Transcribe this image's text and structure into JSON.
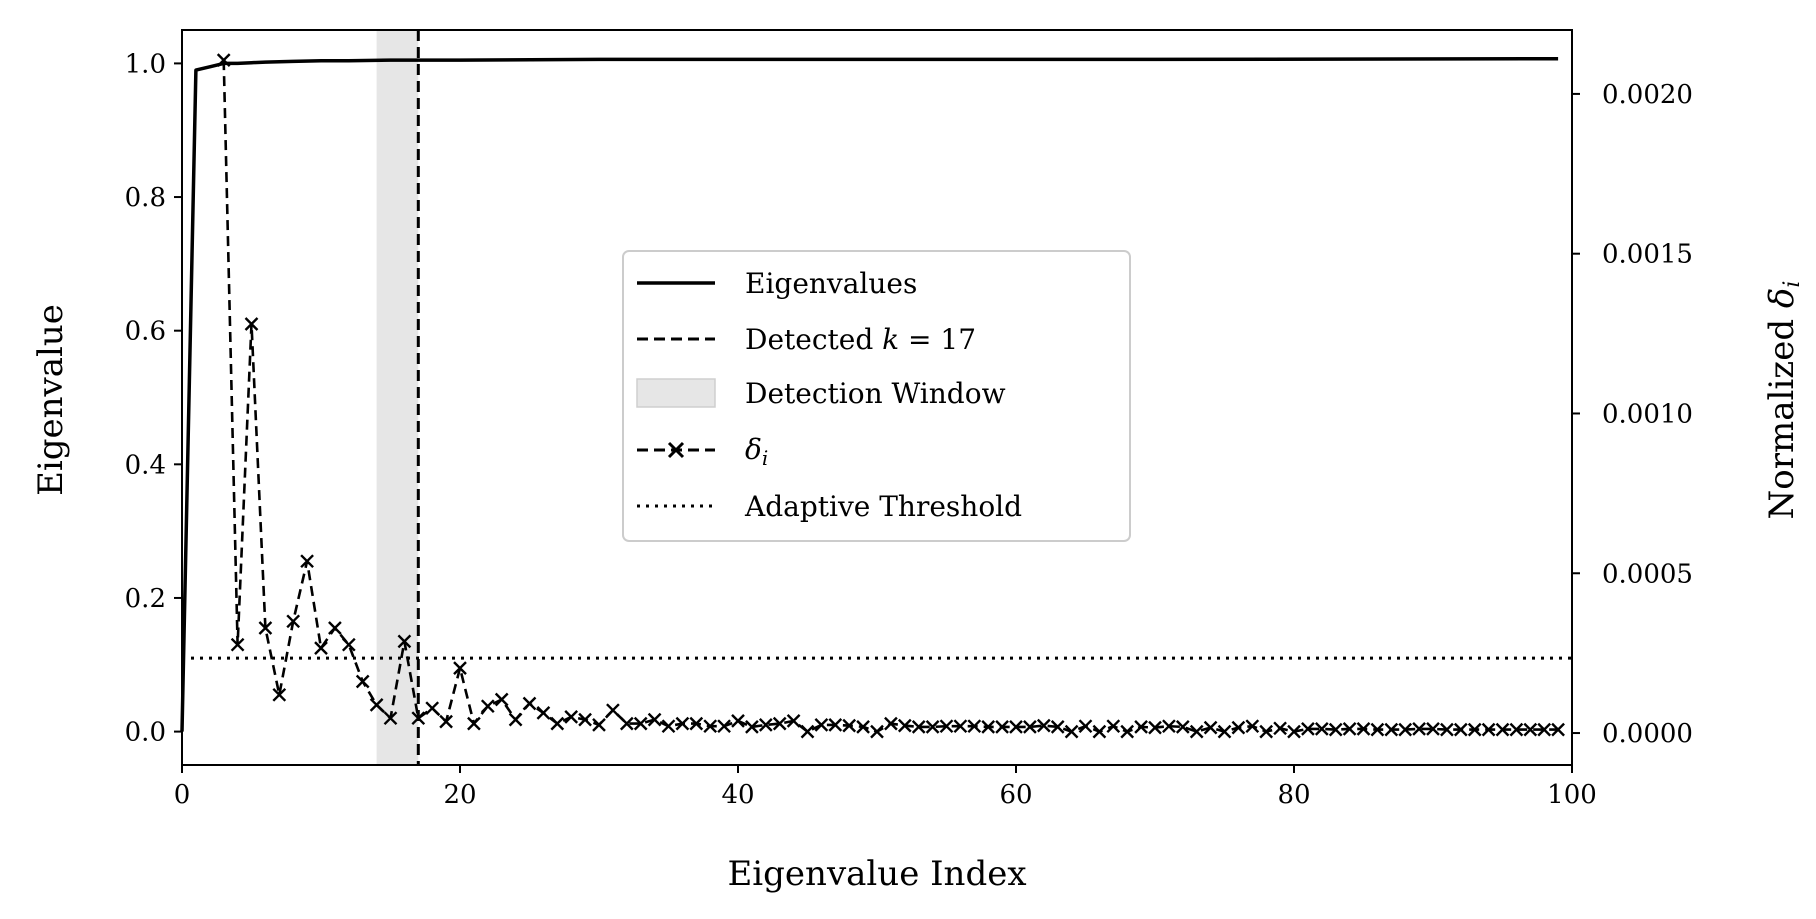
{
  "chart_data": {
    "type": "line",
    "xlabel": "Eigenvalue Index",
    "ylabel": "Eigenvalue",
    "y2label_prefix": "Normalized ",
    "y2label_symbol": "δ",
    "y2label_sub": "i",
    "xlim": [
      0,
      100
    ],
    "ylim": [
      -0.05,
      1.05
    ],
    "y2lim": [
      -0.0001,
      0.0022
    ],
    "x_ticks": [
      "0",
      "20",
      "40",
      "60",
      "80",
      "100"
    ],
    "y_ticks": [
      "0.0",
      "0.2",
      "0.4",
      "0.6",
      "0.8",
      "1.0"
    ],
    "y2_ticks": [
      "0.0000",
      "0.0005",
      "0.0010",
      "0.0015",
      "0.0020"
    ],
    "grid": false,
    "legend_position": "center",
    "legend": {
      "eigenvalues": "Eigenvalues",
      "detected_prefix": "Detected ",
      "detected_var": "k",
      "detected_suffix": " = 17",
      "window": "Detection Window",
      "delta_symbol": "δ",
      "delta_sub": "i",
      "threshold": "Adaptive Threshold"
    },
    "detected_k": 17,
    "detection_window": [
      14,
      17
    ],
    "adaptive_threshold": 0.11,
    "eigenvalues": {
      "x": [
        0,
        1,
        2,
        3,
        4,
        5,
        6,
        8,
        10,
        12,
        15,
        20,
        30,
        50,
        70,
        99
      ],
      "y": [
        0.0,
        0.99,
        0.995,
        1.0,
        1.0,
        1.001,
        1.002,
        1.003,
        1.004,
        1.004,
        1.005,
        1.005,
        1.006,
        1.006,
        1.006,
        1.007
      ]
    },
    "delta_series": {
      "x": [
        3,
        4,
        5,
        6,
        7,
        8,
        9,
        10,
        11,
        12,
        13,
        14,
        15,
        16,
        17,
        18,
        19,
        20,
        21,
        22,
        23,
        24,
        25,
        26,
        27,
        28,
        29,
        30,
        31,
        32,
        33,
        34,
        35,
        36,
        37,
        38,
        39,
        40,
        41,
        42,
        43,
        44,
        45,
        46,
        47,
        48,
        49,
        50,
        51,
        52,
        53,
        54,
        55,
        56,
        57,
        58,
        59,
        60,
        61,
        62,
        63,
        64,
        65,
        66,
        67,
        68,
        69,
        70,
        71,
        72,
        73,
        74,
        75,
        76,
        77,
        78,
        79,
        80,
        81,
        82,
        83,
        84,
        85,
        86,
        87,
        88,
        89,
        90,
        91,
        92,
        93,
        94,
        95,
        96,
        97,
        98,
        99
      ],
      "y": [
        1.005,
        0.13,
        0.61,
        0.155,
        0.055,
        0.165,
        0.255,
        0.125,
        0.155,
        0.13,
        0.075,
        0.04,
        0.02,
        0.135,
        0.02,
        0.035,
        0.015,
        0.095,
        0.012,
        0.038,
        0.048,
        0.018,
        0.042,
        0.028,
        0.012,
        0.022,
        0.018,
        0.01,
        0.032,
        0.012,
        0.012,
        0.018,
        0.008,
        0.012,
        0.012,
        0.008,
        0.008,
        0.016,
        0.007,
        0.01,
        0.012,
        0.016,
        0.0,
        0.01,
        0.01,
        0.009,
        0.007,
        0.0,
        0.012,
        0.009,
        0.007,
        0.007,
        0.008,
        0.008,
        0.008,
        0.007,
        0.007,
        0.007,
        0.007,
        0.009,
        0.007,
        0.0,
        0.008,
        0.0,
        0.008,
        0.0,
        0.007,
        0.006,
        0.008,
        0.007,
        0.0,
        0.006,
        0.0,
        0.006,
        0.008,
        0.0,
        0.005,
        0.0,
        0.004,
        0.004,
        0.003,
        0.004,
        0.004,
        0.003,
        0.003,
        0.003,
        0.004,
        0.004,
        0.003,
        0.003,
        0.003,
        0.003,
        0.003,
        0.003,
        0.003,
        0.003,
        0.003
      ]
    }
  }
}
